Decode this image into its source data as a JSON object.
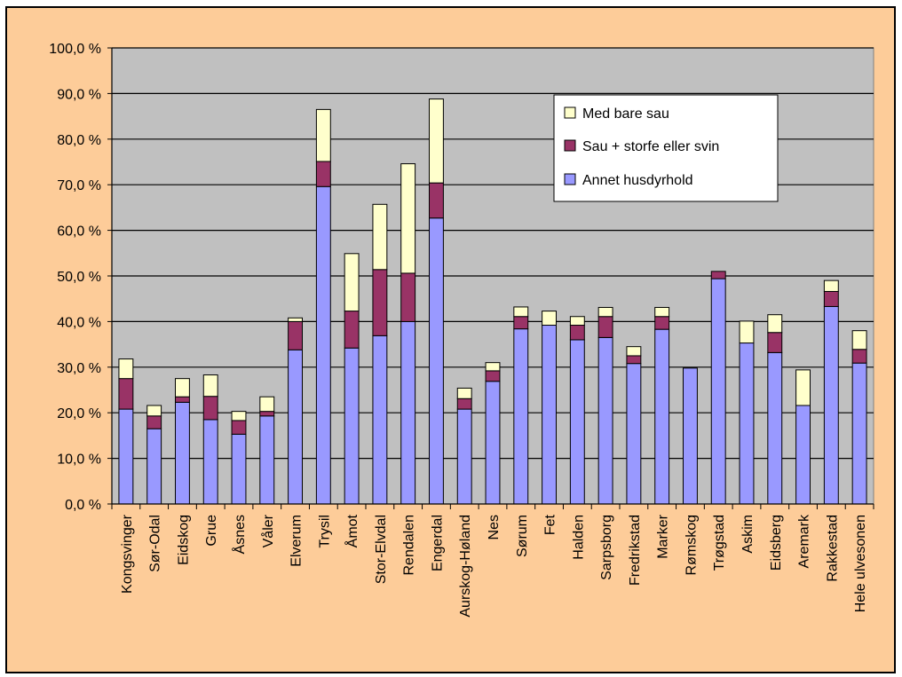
{
  "chart_data": {
    "type": "bar",
    "stacked": true,
    "title": "",
    "xlabel": "",
    "ylabel": "",
    "ylim": [
      0,
      100
    ],
    "ytick_step": 10,
    "ytick_labels": [
      "0,0 %",
      "10,0 %",
      "20,0 %",
      "30,0 %",
      "40,0 %",
      "50,0 %",
      "60,0 %",
      "70,0 %",
      "80,0 %",
      "90,0 %",
      "100,0 %"
    ],
    "grid": true,
    "legend_position": "top-right",
    "categories": [
      "Kongsvinger",
      "Sør-Odal",
      "Eidskog",
      "Grue",
      "Åsnes",
      "Våler",
      "Elverum",
      "Trysil",
      "Åmot",
      "Stor-Elvdal",
      "Rendalen",
      "Engerdal",
      "Aurskog-Høland",
      "Nes",
      "Sørum",
      "Fet",
      "Halden",
      "Sarpsborg",
      "Fredrikstad",
      "Marker",
      "Rømskog",
      "Trøgstad",
      "Askim",
      "Eidsberg",
      "Aremark",
      "Rakkestad",
      "Hele ulvesonen"
    ],
    "series": [
      {
        "name": "Annet husdyrhold",
        "color": "#9999ff",
        "values": [
          20.8,
          16.5,
          22.3,
          18.5,
          15.3,
          19.3,
          33.8,
          69.6,
          34.2,
          36.9,
          40.0,
          62.7,
          20.8,
          26.9,
          38.4,
          39.2,
          36.0,
          36.5,
          30.8,
          38.3,
          29.8,
          49.4,
          35.3,
          33.2,
          21.6,
          43.3,
          30.9
        ]
      },
      {
        "name": "Sau + storfe eller svin",
        "color": "#993366",
        "values": [
          6.7,
          2.8,
          1.2,
          5.1,
          3.0,
          1.0,
          6.2,
          5.5,
          8.1,
          14.5,
          10.6,
          7.7,
          2.3,
          2.3,
          2.7,
          0.0,
          3.2,
          4.6,
          1.7,
          2.8,
          0.0,
          1.6,
          0.0,
          4.4,
          0.0,
          3.3,
          3.0
        ]
      },
      {
        "name": "Med bare sau",
        "color": "#ffffcc",
        "values": [
          4.3,
          2.3,
          4.0,
          4.7,
          2.0,
          3.2,
          0.8,
          11.4,
          12.6,
          14.3,
          24.0,
          18.4,
          2.3,
          1.8,
          2.1,
          3.1,
          1.9,
          2.0,
          2.0,
          2.0,
          0.0,
          0.0,
          4.8,
          3.9,
          7.8,
          2.4,
          4.1
        ]
      }
    ]
  },
  "legend": {
    "items": [
      {
        "label": "Med bare sau",
        "color": "#ffffcc"
      },
      {
        "label": "Sau + storfe eller svin",
        "color": "#993366"
      },
      {
        "label": "Annet husdyrhold",
        "color": "#9999ff"
      }
    ]
  }
}
